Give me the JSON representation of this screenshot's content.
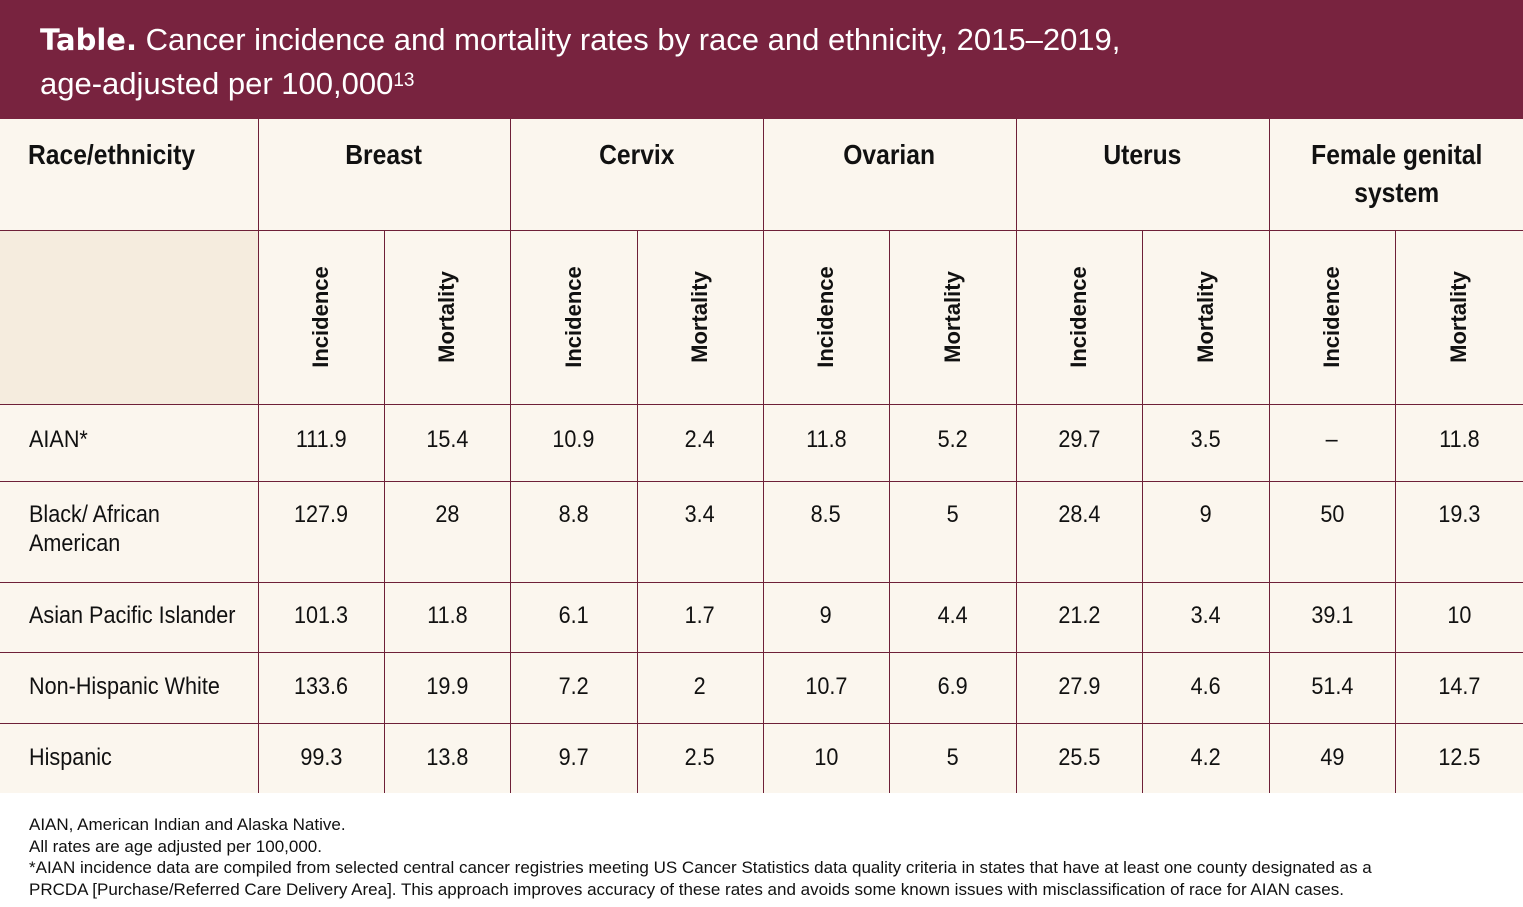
{
  "title": {
    "lead": "Table.",
    "line1": "Cancer incidence and mortality rates by race and ethnicity, 2015–2019,",
    "line2": "age-adjusted per 100,000",
    "superscript": "13"
  },
  "table": {
    "header_first": "Race/ethnicity",
    "groups": [
      "Breast",
      "Cervix",
      "Ovarian",
      "Uterus",
      "Female genital system"
    ],
    "subheaders": [
      "Incidence",
      "Mortality"
    ],
    "rows": [
      {
        "label": "AIAN*",
        "values": [
          "111.9",
          "15.4",
          "10.9",
          "2.4",
          "11.8",
          "5.2",
          "29.7",
          "3.5",
          "–",
          "11.8"
        ]
      },
      {
        "label": "Black/ African American",
        "values": [
          "127.9",
          "28",
          "8.8",
          "3.4",
          "8.5",
          "5",
          "28.4",
          "9",
          "50",
          "19.3"
        ]
      },
      {
        "label": "Asian Pacific Islander",
        "values": [
          "101.3",
          "11.8",
          "6.1",
          "1.7",
          "9",
          "4.4",
          "21.2",
          "3.4",
          "39.1",
          "10"
        ]
      },
      {
        "label": "Non-Hispanic White",
        "values": [
          "133.6",
          "19.9",
          "7.2",
          "2",
          "10.7",
          "6.9",
          "27.9",
          "4.6",
          "51.4",
          "14.7"
        ]
      },
      {
        "label": "Hispanic",
        "values": [
          "99.3",
          "13.8",
          "9.7",
          "2.5",
          "10",
          "5",
          "25.5",
          "4.2",
          "49",
          "12.5"
        ]
      }
    ]
  },
  "notes": [
    "AIAN, American Indian and Alaska Native.",
    "All rates are age adjusted per 100,000.",
    "*AIAN incidence data are compiled from selected central cancer registries meeting US Cancer Statistics data quality criteria in states that have at least one county designated as a",
    "PRCDA [Purchase/Referred Care Delivery Area]. This approach improves accuracy of these rates and avoids some known issues with misclassification of race for AIAN cases."
  ],
  "colors": {
    "banner": "#78233f",
    "border": "#6e2038",
    "cell_background": "#fbf6ee"
  }
}
